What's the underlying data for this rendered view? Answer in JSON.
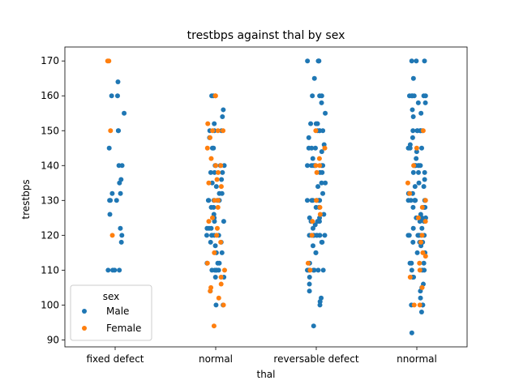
{
  "chart_data": {
    "type": "scatter",
    "title": "trestbps against thal by sex",
    "xlabel": "thal",
    "ylabel": "trestbps",
    "categories": [
      "fixed defect",
      "normal",
      "reversable defect",
      "nnormal"
    ],
    "ylim": [
      88,
      174
    ],
    "yticks": [
      90,
      100,
      110,
      120,
      130,
      140,
      150,
      160,
      170
    ],
    "legend": {
      "title": "sex",
      "placement": "lower-left"
    },
    "series": [
      {
        "name": "Male",
        "color": "#1f77b4",
        "values": [
          [
            164,
            160,
            160,
            155,
            150,
            150,
            145,
            140,
            140,
            136,
            135,
            132,
            132,
            130,
            130,
            130,
            126,
            122,
            120,
            118,
            110,
            110,
            110,
            110
          ],
          [
            160,
            160,
            156,
            154,
            152,
            150,
            150,
            150,
            148,
            145,
            145,
            140,
            140,
            140,
            140,
            138,
            138,
            138,
            136,
            135,
            134,
            132,
            132,
            130,
            130,
            130,
            130,
            130,
            130,
            128,
            128,
            126,
            125,
            124,
            124,
            122,
            122,
            122,
            120,
            120,
            120,
            120,
            120,
            118,
            118,
            117,
            115,
            115,
            112,
            112,
            112,
            110,
            110,
            110,
            110,
            110,
            108,
            108,
            104,
            100,
            100
          ],
          [
            170,
            170,
            170,
            170,
            165,
            160,
            160,
            160,
            158,
            155,
            152,
            152,
            152,
            150,
            150,
            150,
            150,
            148,
            146,
            145,
            145,
            145,
            144,
            142,
            140,
            140,
            140,
            140,
            140,
            140,
            140,
            138,
            138,
            135,
            135,
            134,
            132,
            130,
            130,
            130,
            130,
            130,
            130,
            130,
            128,
            128,
            126,
            125,
            125,
            124,
            124,
            124,
            123,
            122,
            120,
            120,
            120,
            120,
            120,
            120,
            120,
            120,
            120,
            120,
            118,
            118,
            117,
            115,
            115,
            112,
            110,
            110,
            110,
            110,
            110,
            110,
            108,
            106,
            104,
            102,
            101,
            100,
            94
          ],
          [
            170,
            170,
            170,
            165,
            160,
            160,
            160,
            160,
            160,
            160,
            158,
            158,
            156,
            155,
            154,
            150,
            150,
            150,
            150,
            150,
            150,
            150,
            148,
            146,
            145,
            145,
            145,
            144,
            142,
            140,
            140,
            140,
            140,
            140,
            140,
            140,
            138,
            138,
            138,
            136,
            135,
            134,
            134,
            132,
            132,
            130,
            130,
            130,
            130,
            130,
            130,
            130,
            130,
            128,
            128,
            128,
            126,
            125,
            125,
            125,
            124,
            124,
            122,
            122,
            120,
            120,
            120,
            120,
            120,
            120,
            120,
            118,
            118,
            118,
            117,
            115,
            115,
            112,
            112,
            112,
            110,
            110,
            110,
            108,
            108,
            106,
            105,
            104,
            102,
            100,
            100,
            100,
            98,
            92
          ]
        ]
      },
      {
        "name": "Female",
        "color": "#ff7f0e",
        "values": [
          [
            170,
            170,
            150,
            120
          ],
          [
            160,
            160,
            152,
            150,
            150,
            150,
            148,
            145,
            142,
            140,
            140,
            138,
            136,
            135,
            134,
            130,
            130,
            128,
            125,
            124,
            122,
            120,
            118,
            115,
            112,
            110,
            108,
            106,
            105,
            104,
            102,
            100,
            94
          ],
          [
            150,
            145,
            142,
            140,
            140,
            138,
            130,
            128,
            126,
            124,
            120,
            112,
            110
          ],
          [
            150,
            145,
            140,
            135,
            132,
            130,
            128,
            125,
            124,
            120,
            118,
            115,
            114,
            112,
            110,
            108,
            105,
            100,
            100
          ]
        ]
      }
    ]
  }
}
